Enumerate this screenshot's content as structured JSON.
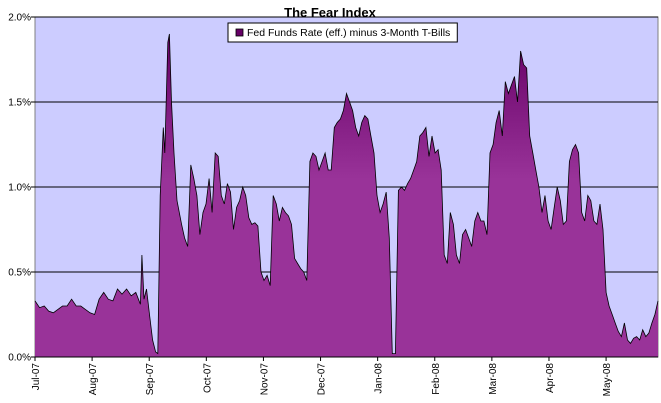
{
  "chart_data": {
    "type": "area",
    "title": "The Fear Index",
    "xlabel": "",
    "ylabel": "",
    "ylim": [
      0,
      2.0
    ],
    "y_ticks": [
      "0.0%",
      "0.5%",
      "1.0%",
      "1.5%",
      "2.0%"
    ],
    "x_ticks": [
      "Jul-07",
      "Aug-07",
      "Sep-07",
      "Oct-07",
      "Nov-07",
      "Dec-07",
      "Jan-08",
      "Feb-08",
      "Mar-08",
      "Apr-08",
      "May-08"
    ],
    "grid": "horizontal",
    "legend_position": "top-center",
    "colors": {
      "plot_bg": "#ccccff",
      "fill": "#993399",
      "fill_dark": "#660066",
      "line": "#000000"
    },
    "series": [
      {
        "name": "Fed Funds Rate (eff.) minus 3-Month T-Bills",
        "points": [
          [
            0,
            0.33
          ],
          [
            1.5,
            0.29
          ],
          [
            3,
            0.3
          ],
          [
            4.5,
            0.27
          ],
          [
            6,
            0.26
          ],
          [
            7.5,
            0.28
          ],
          [
            9,
            0.3
          ],
          [
            10.5,
            0.3
          ],
          [
            12,
            0.34
          ],
          [
            13.5,
            0.3
          ],
          [
            15,
            0.3
          ],
          [
            16.5,
            0.28
          ],
          [
            18,
            0.26
          ],
          [
            19.5,
            0.25
          ],
          [
            21,
            0.34
          ],
          [
            22.5,
            0.38
          ],
          [
            24,
            0.34
          ],
          [
            25.5,
            0.33
          ],
          [
            27,
            0.4
          ],
          [
            28.5,
            0.37
          ],
          [
            30,
            0.4
          ],
          [
            31.5,
            0.36
          ],
          [
            33,
            0.38
          ],
          [
            34.5,
            0.31
          ],
          [
            35,
            0.6
          ],
          [
            35.7,
            0.34
          ],
          [
            36.5,
            0.4
          ],
          [
            37.5,
            0.25
          ],
          [
            38.5,
            0.1
          ],
          [
            39.5,
            0.03
          ],
          [
            40.2,
            0.02
          ],
          [
            41,
            0.95
          ],
          [
            42,
            1.35
          ],
          [
            42.5,
            1.2
          ],
          [
            43.5,
            1.85
          ],
          [
            44,
            1.9
          ],
          [
            44.7,
            1.5
          ],
          [
            45.5,
            1.2
          ],
          [
            46.5,
            0.92
          ],
          [
            48,
            0.78
          ],
          [
            49,
            0.7
          ],
          [
            50,
            0.65
          ],
          [
            51,
            1.13
          ],
          [
            52,
            1.05
          ],
          [
            53,
            0.95
          ],
          [
            54,
            0.72
          ],
          [
            55,
            0.85
          ],
          [
            56,
            0.9
          ],
          [
            57,
            1.05
          ],
          [
            58,
            0.85
          ],
          [
            59,
            1.2
          ],
          [
            60,
            1.18
          ],
          [
            61,
            0.95
          ],
          [
            62,
            0.9
          ],
          [
            63,
            1.02
          ],
          [
            64,
            0.97
          ],
          [
            65,
            0.75
          ],
          [
            66,
            0.88
          ],
          [
            67,
            0.92
          ],
          [
            68,
            1.0
          ],
          [
            69,
            0.95
          ],
          [
            70,
            0.82
          ],
          [
            71,
            0.78
          ],
          [
            72,
            0.79
          ],
          [
            73,
            0.77
          ],
          [
            74,
            0.5
          ],
          [
            75,
            0.45
          ],
          [
            76,
            0.48
          ],
          [
            77,
            0.42
          ],
          [
            78,
            0.95
          ],
          [
            79,
            0.9
          ],
          [
            80,
            0.8
          ],
          [
            81,
            0.88
          ],
          [
            82,
            0.85
          ],
          [
            83,
            0.83
          ],
          [
            84,
            0.78
          ],
          [
            85,
            0.58
          ],
          [
            86,
            0.55
          ],
          [
            87,
            0.52
          ],
          [
            88,
            0.5
          ],
          [
            89,
            0.45
          ],
          [
            90,
            1.15
          ],
          [
            91,
            1.2
          ],
          [
            92,
            1.18
          ],
          [
            93,
            1.1
          ],
          [
            94,
            1.15
          ],
          [
            95,
            1.2
          ],
          [
            96,
            1.1
          ],
          [
            97,
            1.1
          ],
          [
            98,
            1.35
          ],
          [
            99,
            1.38
          ],
          [
            100,
            1.4
          ],
          [
            101,
            1.45
          ],
          [
            102,
            1.55
          ],
          [
            103,
            1.5
          ],
          [
            104,
            1.45
          ],
          [
            105,
            1.35
          ],
          [
            106,
            1.3
          ],
          [
            107,
            1.38
          ],
          [
            108,
            1.42
          ],
          [
            109,
            1.4
          ],
          [
            110,
            1.3
          ],
          [
            111,
            1.2
          ],
          [
            112,
            0.95
          ],
          [
            113,
            0.85
          ],
          [
            114,
            0.9
          ],
          [
            115,
            0.97
          ],
          [
            116,
            0.7
          ],
          [
            117,
            0.02
          ],
          [
            118,
            0.02
          ],
          [
            119,
            0.98
          ],
          [
            120,
            1.0
          ],
          [
            121,
            0.98
          ],
          [
            122,
            1.02
          ],
          [
            123,
            1.05
          ],
          [
            124,
            1.1
          ],
          [
            125,
            1.15
          ],
          [
            126,
            1.3
          ],
          [
            127,
            1.32
          ],
          [
            128,
            1.35
          ],
          [
            129,
            1.18
          ],
          [
            130,
            1.3
          ],
          [
            131,
            1.2
          ],
          [
            132,
            1.22
          ],
          [
            133,
            1.1
          ],
          [
            134,
            0.6
          ],
          [
            135,
            0.55
          ],
          [
            136,
            0.85
          ],
          [
            137,
            0.78
          ],
          [
            138,
            0.6
          ],
          [
            139,
            0.55
          ],
          [
            140,
            0.72
          ],
          [
            141,
            0.75
          ],
          [
            142,
            0.7
          ],
          [
            143,
            0.65
          ],
          [
            144,
            0.8
          ],
          [
            145,
            0.85
          ],
          [
            146,
            0.8
          ],
          [
            147,
            0.8
          ],
          [
            148,
            0.72
          ],
          [
            149,
            1.2
          ],
          [
            150,
            1.25
          ],
          [
            151,
            1.38
          ],
          [
            152,
            1.45
          ],
          [
            153,
            1.3
          ],
          [
            154,
            1.62
          ],
          [
            155,
            1.55
          ],
          [
            156,
            1.6
          ],
          [
            157,
            1.65
          ],
          [
            158,
            1.5
          ],
          [
            159,
            1.8
          ],
          [
            160,
            1.72
          ],
          [
            161,
            1.7
          ],
          [
            162,
            1.3
          ],
          [
            163,
            1.2
          ],
          [
            164,
            1.1
          ],
          [
            165,
            1.0
          ],
          [
            166,
            0.85
          ],
          [
            167,
            0.95
          ],
          [
            168,
            0.8
          ],
          [
            169,
            0.75
          ],
          [
            170,
            0.88
          ],
          [
            171,
            1.0
          ],
          [
            172,
            0.92
          ],
          [
            173,
            0.78
          ],
          [
            174,
            0.8
          ],
          [
            175,
            1.15
          ],
          [
            176,
            1.22
          ],
          [
            177,
            1.25
          ],
          [
            178,
            1.2
          ],
          [
            179,
            0.85
          ],
          [
            180,
            0.8
          ],
          [
            181,
            0.95
          ],
          [
            182,
            0.92
          ],
          [
            183,
            0.8
          ],
          [
            184,
            0.78
          ],
          [
            185,
            0.9
          ],
          [
            186,
            0.75
          ],
          [
            187,
            0.38
          ],
          [
            188,
            0.3
          ],
          [
            189,
            0.25
          ],
          [
            190,
            0.2
          ],
          [
            191,
            0.15
          ],
          [
            192,
            0.12
          ],
          [
            193,
            0.2
          ],
          [
            194,
            0.1
          ],
          [
            195,
            0.08
          ],
          [
            196,
            0.11
          ],
          [
            197,
            0.12
          ],
          [
            198,
            0.1
          ],
          [
            199,
            0.16
          ],
          [
            200,
            0.12
          ],
          [
            201,
            0.14
          ],
          [
            202,
            0.2
          ],
          [
            203,
            0.25
          ],
          [
            204,
            0.33
          ]
        ]
      }
    ]
  }
}
